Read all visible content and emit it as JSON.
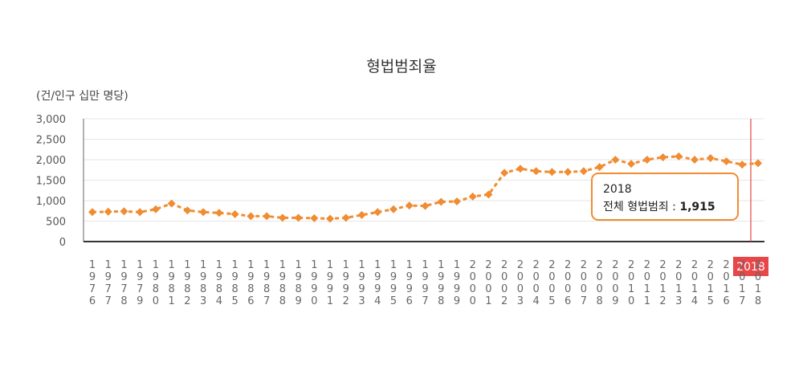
{
  "chart_data": {
    "type": "line",
    "title": "형법범죄율",
    "ylabel": "(건/인구 십만 명당)",
    "xlabel": "",
    "ylim": [
      0,
      3000
    ],
    "yticks": [
      0,
      500,
      1000,
      1500,
      2000,
      2500,
      3000
    ],
    "ytick_labels": [
      "0",
      "500",
      "1,000",
      "1,500",
      "2,000",
      "2,500",
      "3,000"
    ],
    "categories": [
      "1976",
      "1977",
      "1978",
      "1979",
      "1980",
      "1981",
      "1982",
      "1983",
      "1984",
      "1985",
      "1986",
      "1987",
      "1988",
      "1989",
      "1990",
      "1991",
      "1992",
      "1993",
      "1994",
      "1995",
      "1996",
      "1997",
      "1998",
      "1999",
      "2000",
      "2001",
      "2002",
      "2003",
      "2004",
      "2005",
      "2006",
      "2007",
      "2008",
      "2009",
      "2010",
      "2011",
      "2012",
      "2013",
      "2014",
      "2015",
      "2016",
      "2017",
      "2018"
    ],
    "series": [
      {
        "name": "전체 형법범죄",
        "color": "#f08c32",
        "values": [
          720,
          730,
          740,
          720,
          790,
          930,
          760,
          720,
          700,
          670,
          620,
          620,
          580,
          580,
          570,
          560,
          580,
          650,
          720,
          790,
          880,
          870,
          970,
          980,
          1100,
          1150,
          1680,
          1780,
          1720,
          1700,
          1700,
          1720,
          1820,
          2000,
          1900,
          2000,
          2060,
          2080,
          2000,
          2040,
          1960,
          1880,
          1915
        ]
      }
    ],
    "grid": true,
    "legend": "none",
    "highlight": {
      "category": "2018",
      "label": "2018",
      "color": "#e8474a"
    },
    "tooltip": {
      "title": "2018",
      "series_label": "전체 형법범죄 : ",
      "value_text": "1,915",
      "border_color": "#f08c32"
    }
  }
}
